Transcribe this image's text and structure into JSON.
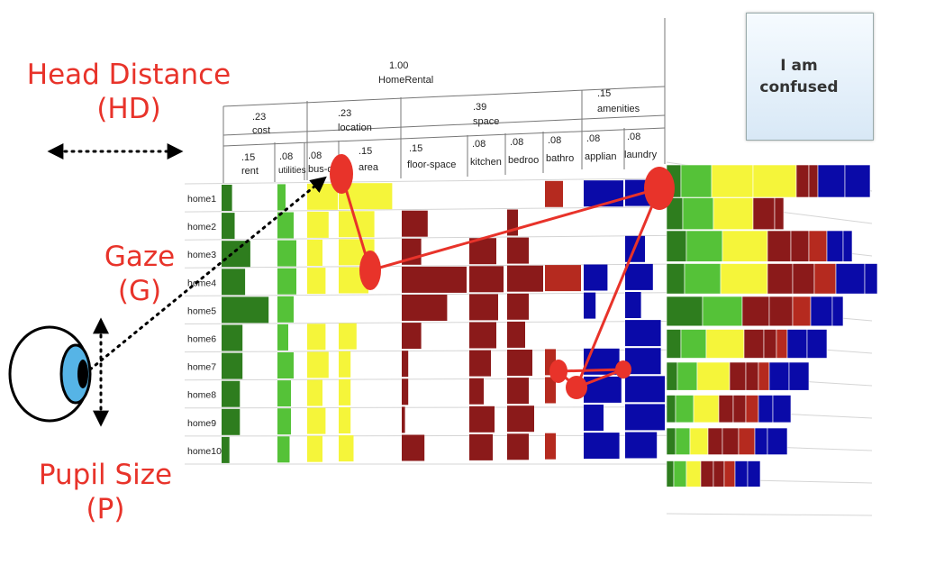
{
  "labels": {
    "head_distance_line1": "Head Distance",
    "head_distance_line2": "(HD)",
    "gaze_line1": "Gaze",
    "gaze_line2": "(G)",
    "pupil_line1": "Pupil Size",
    "pupil_line2": "(P)"
  },
  "button": {
    "line1": "I am",
    "line2": "confused"
  },
  "tree": {
    "root": {
      "weight": "1.00",
      "name": "HomeRental"
    },
    "groups": [
      {
        "weight": ".23",
        "name": "cost"
      },
      {
        "weight": ".23",
        "name": "location"
      },
      {
        "weight": ".39",
        "name": "space"
      },
      {
        "weight": ".15",
        "name": "amenities"
      }
    ],
    "attributes": [
      {
        "weight": ".15",
        "name": "rent"
      },
      {
        "weight": ".08",
        "name": "utilities"
      },
      {
        "weight": ".08",
        "name": "bus-d"
      },
      {
        "weight": ".15",
        "name": "area"
      },
      {
        "weight": ".15",
        "name": "floor-space"
      },
      {
        "weight": ".08",
        "name": "kitchen"
      },
      {
        "weight": ".08",
        "name": "bedroo"
      },
      {
        "weight": ".08",
        "name": "bathro"
      },
      {
        "weight": ".08",
        "name": "applian"
      },
      {
        "weight": ".08",
        "name": "laundry"
      }
    ]
  },
  "rows": [
    "home1",
    "home2",
    "home3",
    "home4",
    "home5",
    "home6",
    "home7",
    "home8",
    "home9",
    "home10"
  ],
  "colors": {
    "accent_red": "#e8332a",
    "green_dark": "#2e7d1e",
    "green_light": "#55c238",
    "yellow": "#f5f53a",
    "maroon": "#8b1a1a",
    "red_brick": "#b52a1f",
    "blue": "#0a0aa8"
  },
  "icons": {
    "eye": "eye-icon",
    "double_arrow": "horizontal-double-arrow-icon",
    "vertical_arrow": "vertical-double-arrow-icon"
  }
}
